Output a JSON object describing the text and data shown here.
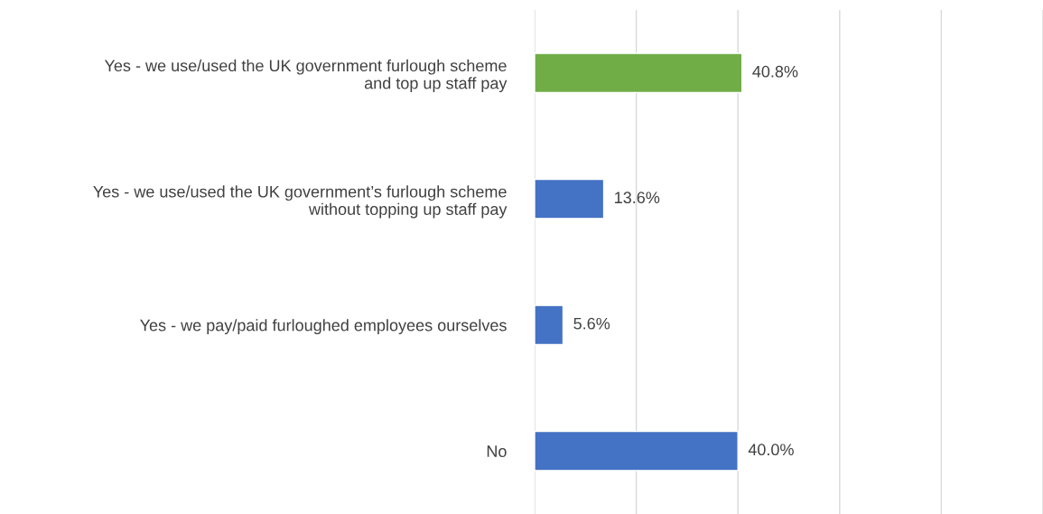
{
  "chart_data": {
    "type": "bar",
    "orientation": "horizontal",
    "categories": [
      "Yes - we use/used the UK government furlough scheme\nand top up staff pay",
      "Yes - we use/used the UK government’s furlough scheme\nwithout topping up staff pay",
      "Yes - we pay/paid furloughed employees ourselves",
      "No"
    ],
    "values": [
      40.8,
      13.6,
      5.6,
      40.0
    ],
    "colors": [
      "#70ad47",
      "#4472c4",
      "#4472c4",
      "#4472c4"
    ],
    "value_labels": [
      "40.8%",
      "13.6%",
      "5.6%",
      "40.0%"
    ],
    "xlim": [
      0,
      100
    ],
    "xticks": [
      {
        "value": 0,
        "label": null
      },
      {
        "value": 20,
        "label": null
      },
      {
        "value": 40,
        "label": null
      },
      {
        "value": 60,
        "label": null
      },
      {
        "value": 80,
        "label": null
      },
      {
        "value": 100,
        "label": null
      }
    ],
    "grid": "x",
    "tick_labels": "y"
  }
}
